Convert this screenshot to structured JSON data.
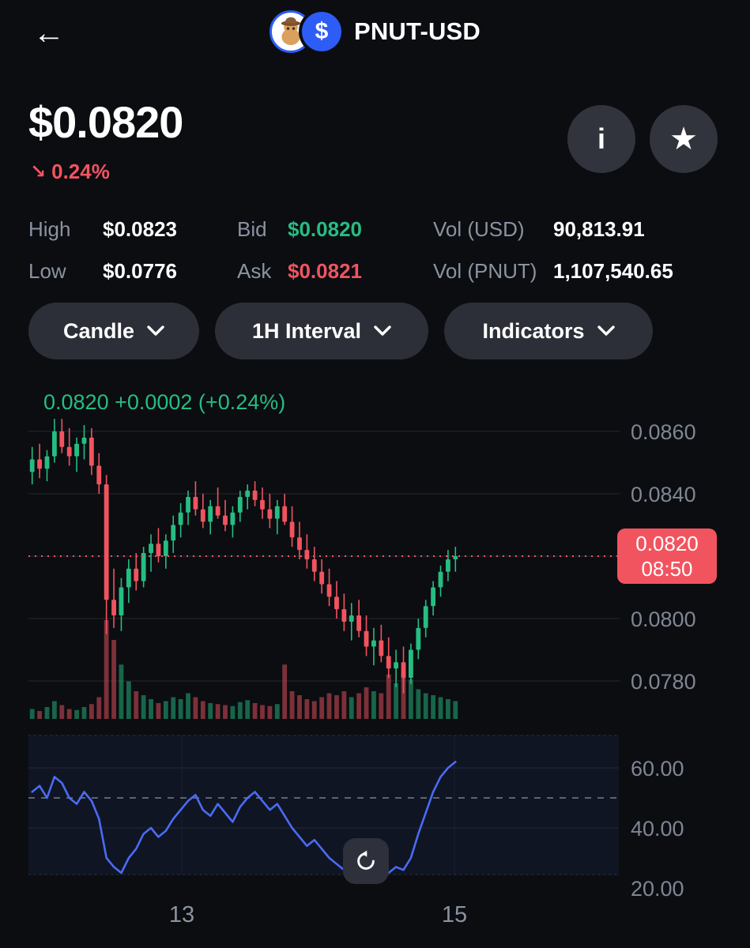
{
  "header": {
    "title": "PNUT-USD"
  },
  "icons": {
    "back": "←",
    "down_arrow": "↘",
    "info": "i",
    "star": "★",
    "dollar": "$"
  },
  "price": {
    "current": "$0.0820",
    "change": "0.24%",
    "direction": "down"
  },
  "stats": {
    "high_label": "High",
    "high_value": "$0.0823",
    "low_label": "Low",
    "low_value": "$0.0776",
    "bid_label": "Bid",
    "bid_value": "$0.0820",
    "ask_label": "Ask",
    "ask_value": "$0.0821",
    "vol_usd_label": "Vol (USD)",
    "vol_usd_value": "90,813.91",
    "vol_pnut_label": "Vol (PNUT)",
    "vol_pnut_value": "1,107,540.65"
  },
  "controls": {
    "candle": "Candle",
    "interval": "1H Interval",
    "indicators": "Indicators"
  },
  "chart": {
    "legend": "0.0820 +0.0002 (+0.24%)",
    "price_badge": {
      "price": "0.0820",
      "time": "08:50"
    },
    "y_labels": [
      "0.0860",
      "0.0840",
      "0.0820",
      "0.0800",
      "0.0780"
    ],
    "rsi_labels": [
      "60.00",
      "40.00",
      "20.00"
    ],
    "x_labels": [
      "13",
      "15"
    ]
  },
  "colors": {
    "green": "#26bd82",
    "red": "#f0545f",
    "badge_red": "#f2545f",
    "rsi_blue": "#4a6bf5",
    "grid": "#23262f",
    "rsi_grid": "#232838",
    "dash_mid": "#9aa0ad",
    "accent_blue": "#2d5cf6",
    "panel_bg": "#101523"
  },
  "chart_data": {
    "type": "candlestick",
    "pair": "PNUT-USD",
    "interval": "1H",
    "title": "PNUT-USD 1H candles with volume and RSI",
    "last_price": 0.082,
    "price_line": 0.082,
    "y_ticks": [
      0.086,
      0.084,
      0.082,
      0.08,
      0.078
    ],
    "x_ticks": [
      "13",
      "15"
    ],
    "candles": [
      [
        0.0847,
        0.0855,
        0.0843,
        0.0851
      ],
      [
        0.0851,
        0.0856,
        0.0845,
        0.0848
      ],
      [
        0.0848,
        0.0854,
        0.0844,
        0.0852
      ],
      [
        0.0852,
        0.0864,
        0.085,
        0.086
      ],
      [
        0.086,
        0.0864,
        0.0853,
        0.0855
      ],
      [
        0.0855,
        0.0861,
        0.0849,
        0.0852
      ],
      [
        0.0852,
        0.0858,
        0.0847,
        0.0856
      ],
      [
        0.0856,
        0.0862,
        0.0851,
        0.0858
      ],
      [
        0.0858,
        0.0861,
        0.0846,
        0.0849
      ],
      [
        0.0849,
        0.0853,
        0.084,
        0.0843
      ],
      [
        0.0843,
        0.0846,
        0.0795,
        0.0806
      ],
      [
        0.0806,
        0.0816,
        0.0797,
        0.0801
      ],
      [
        0.0801,
        0.0813,
        0.0796,
        0.081
      ],
      [
        0.081,
        0.0819,
        0.0805,
        0.0816
      ],
      [
        0.0816,
        0.0821,
        0.0809,
        0.0812
      ],
      [
        0.0812,
        0.0823,
        0.081,
        0.0821
      ],
      [
        0.0821,
        0.0827,
        0.0815,
        0.0824
      ],
      [
        0.0824,
        0.0829,
        0.0818,
        0.082
      ],
      [
        0.082,
        0.0827,
        0.0816,
        0.0825
      ],
      [
        0.0825,
        0.0833,
        0.0821,
        0.083
      ],
      [
        0.083,
        0.0837,
        0.0826,
        0.0834
      ],
      [
        0.0834,
        0.0841,
        0.083,
        0.0839
      ],
      [
        0.0839,
        0.0844,
        0.0833,
        0.0835
      ],
      [
        0.0835,
        0.084,
        0.0829,
        0.0831
      ],
      [
        0.0831,
        0.0838,
        0.0827,
        0.0836
      ],
      [
        0.0836,
        0.0842,
        0.0832,
        0.0833
      ],
      [
        0.0833,
        0.0838,
        0.0828,
        0.083
      ],
      [
        0.083,
        0.0836,
        0.0826,
        0.0834
      ],
      [
        0.0834,
        0.0841,
        0.0831,
        0.0839
      ],
      [
        0.0839,
        0.0843,
        0.0835,
        0.0841
      ],
      [
        0.0841,
        0.0844,
        0.0836,
        0.0838
      ],
      [
        0.0838,
        0.0842,
        0.0832,
        0.0835
      ],
      [
        0.0835,
        0.084,
        0.0829,
        0.0832
      ],
      [
        0.0832,
        0.0838,
        0.0827,
        0.0836
      ],
      [
        0.0836,
        0.084,
        0.083,
        0.0831
      ],
      [
        0.0831,
        0.0836,
        0.0823,
        0.0826
      ],
      [
        0.0826,
        0.0831,
        0.0819,
        0.0822
      ],
      [
        0.0822,
        0.0827,
        0.0816,
        0.0819
      ],
      [
        0.0819,
        0.0823,
        0.0812,
        0.0815
      ],
      [
        0.0815,
        0.0819,
        0.0808,
        0.0811
      ],
      [
        0.0811,
        0.0816,
        0.0804,
        0.0807
      ],
      [
        0.0807,
        0.0812,
        0.08,
        0.0803
      ],
      [
        0.0803,
        0.0808,
        0.0796,
        0.0799
      ],
      [
        0.0799,
        0.0805,
        0.0793,
        0.0801
      ],
      [
        0.0801,
        0.0806,
        0.0794,
        0.0796
      ],
      [
        0.0796,
        0.0801,
        0.0788,
        0.0791
      ],
      [
        0.0791,
        0.0797,
        0.0785,
        0.0793
      ],
      [
        0.0793,
        0.0798,
        0.0786,
        0.0788
      ],
      [
        0.0788,
        0.0794,
        0.0781,
        0.0784
      ],
      [
        0.0784,
        0.079,
        0.0778,
        0.0786
      ],
      [
        0.0786,
        0.0791,
        0.0776,
        0.0781
      ],
      [
        0.0781,
        0.0792,
        0.0779,
        0.079
      ],
      [
        0.079,
        0.08,
        0.0787,
        0.0797
      ],
      [
        0.0797,
        0.0806,
        0.0794,
        0.0804
      ],
      [
        0.0804,
        0.0812,
        0.0801,
        0.081
      ],
      [
        0.081,
        0.0817,
        0.0807,
        0.0815
      ],
      [
        0.0815,
        0.0822,
        0.0812,
        0.0819
      ],
      [
        0.0819,
        0.0823,
        0.0815,
        0.082
      ]
    ],
    "volumes": [
      0.1,
      0.08,
      0.12,
      0.18,
      0.14,
      0.1,
      0.09,
      0.12,
      0.15,
      0.22,
      1.0,
      0.8,
      0.55,
      0.38,
      0.28,
      0.24,
      0.2,
      0.16,
      0.18,
      0.22,
      0.2,
      0.26,
      0.22,
      0.18,
      0.16,
      0.15,
      0.14,
      0.13,
      0.17,
      0.19,
      0.16,
      0.14,
      0.13,
      0.15,
      0.55,
      0.28,
      0.24,
      0.2,
      0.18,
      0.22,
      0.26,
      0.24,
      0.28,
      0.22,
      0.26,
      0.32,
      0.28,
      0.26,
      0.45,
      0.36,
      0.5,
      0.4,
      0.3,
      0.26,
      0.24,
      0.22,
      0.2,
      0.18
    ],
    "rsi": {
      "midline": 50,
      "ticks": [
        60,
        40,
        20
      ],
      "values": [
        52,
        54,
        50,
        57,
        55,
        50,
        48,
        52,
        49,
        43,
        30,
        27,
        25,
        30,
        33,
        38,
        40,
        37,
        39,
        43,
        46,
        49,
        51,
        46,
        44,
        48,
        45,
        42,
        47,
        50,
        52,
        49,
        46,
        48,
        44,
        40,
        37,
        34,
        36,
        33,
        30,
        28,
        26,
        29,
        27,
        25,
        28,
        26,
        25,
        27,
        26,
        30,
        38,
        45,
        52,
        57,
        60,
        62
      ]
    }
  }
}
